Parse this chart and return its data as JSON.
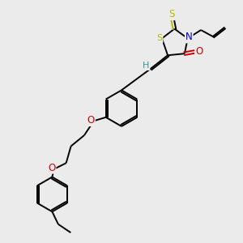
{
  "bg_color": "#ebebeb",
  "bond_color": "#000000",
  "S_color": "#b8b800",
  "N_color": "#0000cc",
  "O_color": "#cc0000",
  "H_color": "#339999",
  "lw": 1.4,
  "fs": 8.5,
  "xlim": [
    0,
    10
  ],
  "ylim": [
    0,
    10
  ]
}
